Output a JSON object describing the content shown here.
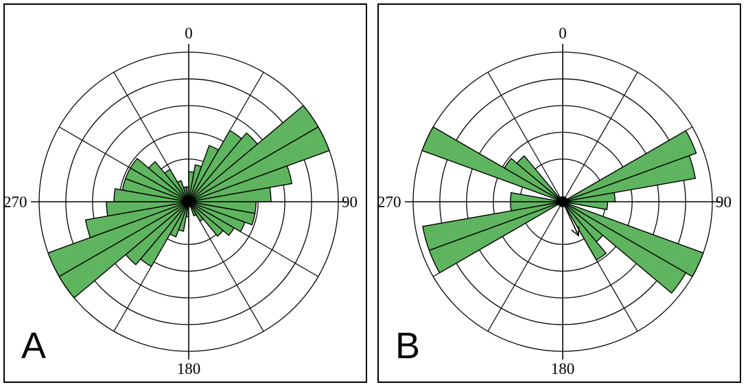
{
  "chart_data": [
    {
      "type": "rose",
      "panel_label": "A",
      "direction_labels": [
        "0",
        "90",
        "180",
        "270"
      ],
      "ring_count": 5,
      "sector_width_deg": 10,
      "petal_color": "#5fb55f",
      "petals": [
        {
          "direction": 5,
          "radius": 0.2
        },
        {
          "direction": 15,
          "radius": 0.25
        },
        {
          "direction": 25,
          "radius": 0.4
        },
        {
          "direction": 35,
          "radius": 0.55
        },
        {
          "direction": 45,
          "radius": 0.6
        },
        {
          "direction": 55,
          "radius": 1.0
        },
        {
          "direction": 65,
          "radius": 1.0
        },
        {
          "direction": 75,
          "radius": 0.7
        },
        {
          "direction": 85,
          "radius": 0.55
        },
        {
          "direction": 95,
          "radius": 0.45
        },
        {
          "direction": 105,
          "radius": 0.45
        },
        {
          "direction": 115,
          "radius": 0.4
        },
        {
          "direction": 125,
          "radius": 0.35
        },
        {
          "direction": 135,
          "radius": 0.3
        },
        {
          "direction": 145,
          "radius": 0.15
        },
        {
          "direction": 155,
          "radius": 0.1
        },
        {
          "direction": 185,
          "radius": 0.1
        },
        {
          "direction": 195,
          "radius": 0.2
        },
        {
          "direction": 205,
          "radius": 0.25
        },
        {
          "direction": 215,
          "radius": 0.5
        },
        {
          "direction": 225,
          "radius": 0.55
        },
        {
          "direction": 235,
          "radius": 1.0
        },
        {
          "direction": 245,
          "radius": 1.0
        },
        {
          "direction": 255,
          "radius": 0.7
        },
        {
          "direction": 265,
          "radius": 0.55
        },
        {
          "direction": 275,
          "radius": 0.5
        },
        {
          "direction": 285,
          "radius": 0.45
        },
        {
          "direction": 295,
          "radius": 0.45
        },
        {
          "direction": 305,
          "radius": 0.45
        },
        {
          "direction": 315,
          "radius": 0.35
        },
        {
          "direction": 325,
          "radius": 0.25
        },
        {
          "direction": 335,
          "radius": 0.15
        },
        {
          "direction": 345,
          "radius": 0.1
        },
        {
          "direction": 355,
          "radius": 0.1
        }
      ]
    },
    {
      "type": "rose",
      "panel_label": "B",
      "direction_labels": [
        "0",
        "90",
        "180",
        "270"
      ],
      "ring_count": 5,
      "sector_width_deg": 10,
      "petal_color": "#5fb55f",
      "petals": [
        {
          "direction": 65,
          "radius": 0.95
        },
        {
          "direction": 75,
          "radius": 0.9
        },
        {
          "direction": 85,
          "radius": 0.35
        },
        {
          "direction": 95,
          "radius": 0.3
        },
        {
          "direction": 115,
          "radius": 1.0
        },
        {
          "direction": 125,
          "radius": 0.95
        },
        {
          "direction": 135,
          "radius": 0.35
        },
        {
          "direction": 145,
          "radius": 0.45
        },
        {
          "direction": 245,
          "radius": 0.95
        },
        {
          "direction": 255,
          "radius": 0.95
        },
        {
          "direction": 265,
          "radius": 0.35
        },
        {
          "direction": 275,
          "radius": 0.35
        },
        {
          "direction": 295,
          "radius": 1.0
        },
        {
          "direction": 305,
          "radius": 0.45
        },
        {
          "direction": 315,
          "radius": 0.4
        }
      ],
      "mean_direction_arrow": {
        "direction": 155,
        "radius": 0.25
      }
    }
  ]
}
